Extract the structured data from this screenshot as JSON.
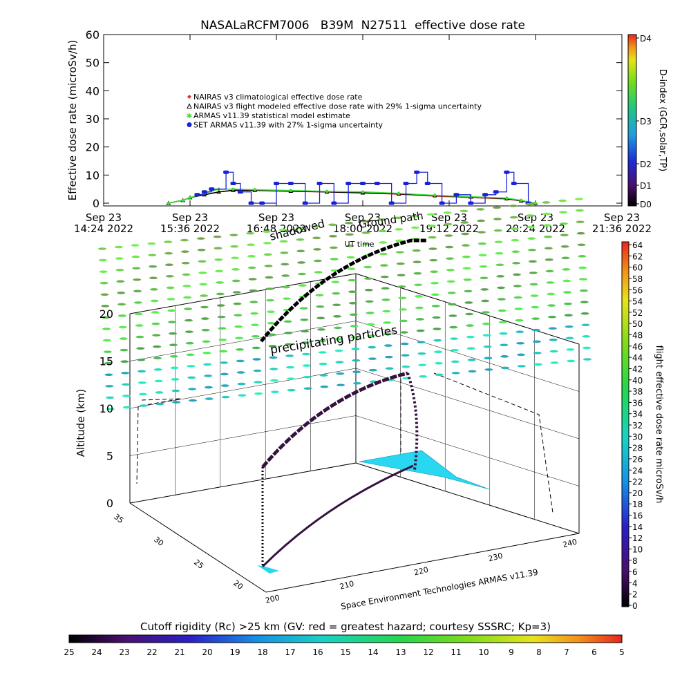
{
  "colors": {
    "nairas_clim": "#e0302c",
    "nairas_flight": "#000000",
    "armas_stat": "#3fdc3a",
    "set_armas": "#1a22d6"
  },
  "chart_data": [
    {
      "type": "line",
      "title": "NASALaRCFM7006   B39M  N27511  effective dose rate",
      "ylabel": "Effective dose rate (microSv/h)",
      "xlabel": "UT time",
      "ylim": [
        0,
        60
      ],
      "yticks": [
        0,
        10,
        20,
        30,
        40,
        50,
        60
      ],
      "x_range_hours": [
        14.4,
        21.6
      ],
      "xticks": [
        {
          "h": 14.4,
          "l1": "Sep 23",
          "l2": "14:24 2022"
        },
        {
          "h": 15.6,
          "l1": "Sep 23",
          "l2": "15:36 2022"
        },
        {
          "h": 16.8,
          "l1": "Sep 23",
          "l2": "16:48 2022"
        },
        {
          "h": 18.0,
          "l1": "Sep 23",
          "l2": "18:00 2022"
        },
        {
          "h": 19.2,
          "l1": "Sep 23",
          "l2": "19:12 2022"
        },
        {
          "h": 20.4,
          "l1": "Sep 23",
          "l2": "20:24 2022"
        },
        {
          "h": 21.6,
          "l1": "Sep 23",
          "l2": "21:36 2022"
        }
      ],
      "legend": [
        {
          "label": "NAIRAS v3 climatological effective dose rate",
          "symbol": "diamond",
          "color": "#e0302c"
        },
        {
          "label": "NAIRAS v3 flight modeled effective dose rate with 29% 1-sigma uncertainty",
          "symbol": "triangle",
          "color": "#000000"
        },
        {
          "label": "ARMAS v11.39 statistical model estimate",
          "symbol": "star",
          "color": "#3fdc3a"
        },
        {
          "label": "SET ARMAS v11.39 with 27% 1-sigma uncertainty",
          "symbol": "dot",
          "color": "#1a22d6"
        }
      ],
      "series": [
        {
          "name": "NAIRAS v3 climatological effective dose rate",
          "x": [
            15.3,
            15.5,
            15.6,
            15.8,
            16.0,
            16.2,
            16.5,
            17.0,
            17.5,
            18.0,
            18.5,
            19.0,
            19.5,
            20.0,
            20.2,
            20.4
          ],
          "y": [
            0,
            1,
            2,
            3,
            4,
            4.5,
            4.5,
            4.2,
            4.0,
            3.6,
            3.2,
            2.5,
            2.0,
            1.5,
            0.8,
            0
          ]
        },
        {
          "name": "NAIRAS v3 flight modeled effective dose rate with 29% 1-sigma uncertainty",
          "x": [
            15.3,
            15.5,
            15.6,
            15.8,
            16.0,
            16.2,
            16.5,
            17.0,
            17.5,
            18.0,
            18.5,
            19.0,
            19.5,
            20.0,
            20.2,
            20.4
          ],
          "y": [
            0,
            1,
            2,
            3,
            4,
            4.6,
            4.6,
            4.3,
            4.0,
            3.7,
            3.3,
            2.7,
            2.2,
            1.6,
            0.8,
            0
          ]
        },
        {
          "name": "ARMAS v11.39 statistical model estimate",
          "x": [
            15.3,
            15.5,
            15.6,
            15.8,
            16.0,
            16.2,
            16.5,
            17.0,
            17.5,
            18.0,
            18.5,
            19.0,
            19.5,
            20.0,
            20.2,
            20.4
          ],
          "y": [
            0,
            1,
            2,
            3.5,
            5,
            5,
            4.8,
            4.5,
            4.2,
            4.0,
            3.5,
            2.8,
            2.3,
            1.8,
            1.0,
            0
          ]
        },
        {
          "name": "SET ARMAS v11.39 with 27% 1-sigma uncertainty",
          "x": [
            15.7,
            15.8,
            15.9,
            16.1,
            16.2,
            16.3,
            16.45,
            16.6,
            16.8,
            17.0,
            17.2,
            17.4,
            17.6,
            17.8,
            18.0,
            18.2,
            18.4,
            18.6,
            18.75,
            18.9,
            19.1,
            19.3,
            19.5,
            19.7,
            19.85,
            20.0,
            20.1,
            20.3
          ],
          "y": [
            3,
            4,
            5,
            11,
            7,
            4,
            0,
            0,
            7,
            7,
            0,
            7,
            0,
            7,
            7,
            7,
            0,
            7,
            11,
            7,
            0,
            3,
            0,
            3,
            4,
            11,
            7,
            0
          ]
        }
      ],
      "dindex": {
        "label": "D-index (GCR,solar,TP)",
        "ticks": [
          "D0",
          "D1",
          "D2",
          "D3",
          "D4"
        ]
      }
    },
    {
      "type": "scatter",
      "ylabel": "Altitude (km)",
      "zticks": [
        0,
        5,
        10,
        15,
        20
      ],
      "lon_ticks": [
        200,
        210,
        220,
        230,
        240
      ],
      "lat_ticks": [
        20,
        25,
        30,
        35
      ],
      "annotations": [
        "precipitating particles",
        "shadowed",
        "Ground path"
      ],
      "credit": "Space Environment Technologies ARMAS v11.39",
      "flight_colorbar": {
        "label": "flight effective dose rate microSv/h",
        "ticks": [
          0,
          2,
          4,
          6,
          8,
          10,
          12,
          14,
          16,
          18,
          20,
          22,
          24,
          26,
          28,
          30,
          32,
          34,
          36,
          38,
          40,
          42,
          44,
          46,
          48,
          50,
          52,
          54,
          56,
          58,
          60,
          62,
          64
        ]
      },
      "cutoff_colorbar": {
        "label": "Cutoff rigidity (Rc) >25 km (GV: red = greatest hazard; courtesy SSSRC; Kp=3)",
        "ticks": [
          25,
          24,
          23,
          22,
          21,
          20,
          19,
          18,
          17,
          16,
          15,
          14,
          13,
          12,
          11,
          10,
          9,
          8,
          7,
          6,
          5
        ]
      }
    }
  ]
}
